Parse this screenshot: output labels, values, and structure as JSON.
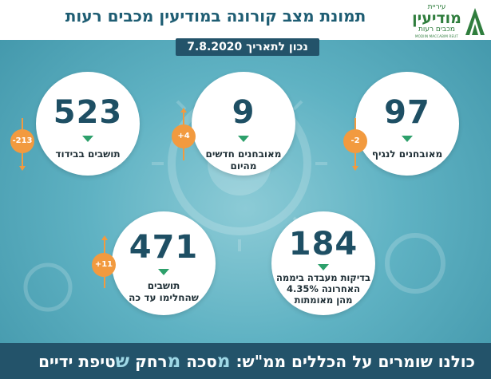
{
  "header": {
    "title": "תמונת מצב קורונה במודיעין מכבים רעות",
    "date": "נכון לתאריך 7.8.2020"
  },
  "logo": {
    "town": "עיריית",
    "name": "מודיעין",
    "sub": "מכבים רעות",
    "english": "MODIIN MACCABIM REUT"
  },
  "stats": [
    {
      "value": "523",
      "label": "תושבים בבידוד",
      "change": "-213",
      "direction": "down"
    },
    {
      "value": "9",
      "label": "מאובחנים חדשים\nמהיום",
      "change": "+4",
      "direction": "up"
    },
    {
      "value": "97",
      "label": "מאובחנים לנגיף",
      "change": "-2",
      "direction": "down"
    },
    {
      "value": "471",
      "label": "תושבים\nשהחלימו עד כה",
      "change": "+11",
      "direction": "up"
    },
    {
      "value": "184",
      "label": "בדיקות מעבדה ביממה\nהאחרונה 4.35%\nמהן מאומתות",
      "change": "",
      "direction": "down"
    }
  ],
  "footer": {
    "prefix": "כולנו שומרים על הכללים ממ\"ש:",
    "k1": "מ",
    "w1": "סכה",
    "k2": "מ",
    "w2": "רחק",
    "k3": "ש",
    "w3": "טיפת ידיים"
  },
  "colors": {
    "background": "#4aa3b6",
    "banner": "#23536a",
    "number": "#1e4f64",
    "trend_triangle": "#2da06b",
    "badge": "#f29a3f",
    "logo_green": "#2f7d3d"
  }
}
